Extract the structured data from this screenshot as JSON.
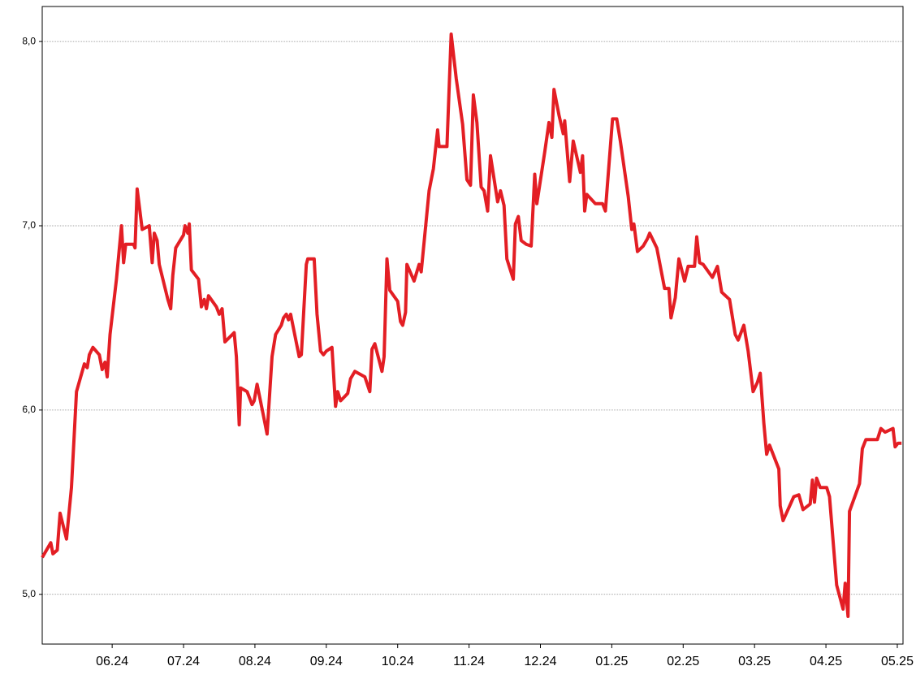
{
  "chart_data": {
    "type": "line",
    "xlim": [
      5.02,
      17.08
    ],
    "ylim": [
      4.73,
      8.19
    ],
    "xticks": [
      {
        "value": 6,
        "label": "06.24"
      },
      {
        "value": 7,
        "label": "07.24"
      },
      {
        "value": 8,
        "label": "08.24"
      },
      {
        "value": 9,
        "label": "09.24"
      },
      {
        "value": 10,
        "label": "10.24"
      },
      {
        "value": 11,
        "label": "11.24"
      },
      {
        "value": 12,
        "label": "12.24"
      },
      {
        "value": 13,
        "label": "01.25"
      },
      {
        "value": 14,
        "label": "02.25"
      },
      {
        "value": 15,
        "label": "03.25"
      },
      {
        "value": 16,
        "label": "04.25"
      },
      {
        "value": 17,
        "label": "05.25"
      }
    ],
    "yticks": [
      {
        "value": 5,
        "label": "5,0"
      },
      {
        "value": 6,
        "label": "6,0"
      },
      {
        "value": 7,
        "label": "7,0"
      },
      {
        "value": 8,
        "label": "8,0"
      }
    ],
    "grid": true,
    "series": [
      {
        "color": "#e31e24",
        "x": [
          5.02,
          5.14,
          5.17,
          5.23,
          5.27,
          5.36,
          5.43,
          5.5,
          5.61,
          5.65,
          5.68,
          5.73,
          5.82,
          5.86,
          5.9,
          5.93,
          5.97,
          6.06,
          6.13,
          6.16,
          6.19,
          6.3,
          6.32,
          6.35,
          6.42,
          6.52,
          6.56,
          6.59,
          6.63,
          6.66,
          6.78,
          6.82,
          6.85,
          6.89,
          7.0,
          7.02,
          7.06,
          7.08,
          7.11,
          7.21,
          7.25,
          7.29,
          7.32,
          7.35,
          7.46,
          7.5,
          7.54,
          7.58,
          7.71,
          7.74,
          7.78,
          7.8,
          7.89,
          7.96,
          7.99,
          8.03,
          8.13,
          8.17,
          8.24,
          8.29,
          8.37,
          8.4,
          8.44,
          8.47,
          8.5,
          8.62,
          8.65,
          8.72,
          8.74,
          8.83,
          8.87,
          8.92,
          8.96,
          9.0,
          9.08,
          9.13,
          9.16,
          9.2,
          9.3,
          9.34,
          9.4,
          9.54,
          9.61,
          9.64,
          9.68,
          9.78,
          9.81,
          9.85,
          9.89,
          10.0,
          10.04,
          10.07,
          10.11,
          10.13,
          10.23,
          10.3,
          10.33,
          10.44,
          10.5,
          10.56,
          10.58,
          10.69,
          10.75,
          10.82,
          10.91,
          10.97,
          11.02,
          11.06,
          11.11,
          11.17,
          11.21,
          11.26,
          11.3,
          11.4,
          11.44,
          11.49,
          11.53,
          11.62,
          11.65,
          11.69,
          11.73,
          11.8,
          11.87,
          11.92,
          11.95,
          12.06,
          12.12,
          12.16,
          12.19,
          12.26,
          12.32,
          12.34,
          12.41,
          12.46,
          12.56,
          12.59,
          12.62,
          12.65,
          12.77,
          12.87,
          12.91,
          13.01,
          13.07,
          13.12,
          13.23,
          13.28,
          13.31,
          13.36,
          13.44,
          13.5,
          13.53,
          13.63,
          13.74,
          13.76,
          13.8,
          13.83,
          13.89,
          13.94,
          14.02,
          14.07,
          14.16,
          14.19,
          14.23,
          14.28,
          14.41,
          14.48,
          14.54,
          14.65,
          14.73,
          14.77,
          14.85,
          14.91,
          14.98,
          15.04,
          15.08,
          15.13,
          15.17,
          15.21,
          15.34,
          15.36,
          15.4,
          15.55,
          15.62,
          15.68,
          15.78,
          15.81,
          15.84,
          15.87,
          15.92,
          16.01,
          16.05,
          16.15,
          16.24,
          16.27,
          16.31,
          16.33,
          16.47,
          16.51,
          16.56,
          16.72,
          16.77,
          16.83,
          16.94,
          16.97,
          17.01,
          17.06
        ],
        "values": [
          5.2,
          5.28,
          5.22,
          5.24,
          5.44,
          5.3,
          5.58,
          6.1,
          6.25,
          6.23,
          6.3,
          6.34,
          6.3,
          6.22,
          6.26,
          6.18,
          6.41,
          6.71,
          7.0,
          6.8,
          6.9,
          6.9,
          6.88,
          7.2,
          6.98,
          7.0,
          6.8,
          6.96,
          6.92,
          6.79,
          6.6,
          6.55,
          6.73,
          6.88,
          6.95,
          7.0,
          6.96,
          7.01,
          6.76,
          6.71,
          6.56,
          6.6,
          6.55,
          6.62,
          6.56,
          6.52,
          6.55,
          6.37,
          6.42,
          6.29,
          5.92,
          6.12,
          6.1,
          6.03,
          6.05,
          6.14,
          5.95,
          5.87,
          6.29,
          6.41,
          6.46,
          6.5,
          6.52,
          6.49,
          6.52,
          6.29,
          6.3,
          6.79,
          6.82,
          6.82,
          6.52,
          6.32,
          6.3,
          6.32,
          6.34,
          6.02,
          6.1,
          6.05,
          6.09,
          6.17,
          6.21,
          6.18,
          6.1,
          6.33,
          6.36,
          6.21,
          6.29,
          6.82,
          6.65,
          6.59,
          6.48,
          6.46,
          6.53,
          6.79,
          6.7,
          6.79,
          6.75,
          7.19,
          7.31,
          7.52,
          7.43,
          7.43,
          8.04,
          7.8,
          7.55,
          7.25,
          7.22,
          7.71,
          7.56,
          7.21,
          7.19,
          7.08,
          7.38,
          7.13,
          7.19,
          7.11,
          6.82,
          6.71,
          7.01,
          7.05,
          6.92,
          6.9,
          6.89,
          7.28,
          7.12,
          7.4,
          7.56,
          7.48,
          7.74,
          7.6,
          7.5,
          7.57,
          7.24,
          7.46,
          7.29,
          7.38,
          7.08,
          7.17,
          7.12,
          7.12,
          7.08,
          7.58,
          7.58,
          7.46,
          7.16,
          6.98,
          7.01,
          6.86,
          6.89,
          6.93,
          6.96,
          6.88,
          6.66,
          6.66,
          6.66,
          6.5,
          6.61,
          6.82,
          6.7,
          6.78,
          6.78,
          6.94,
          6.8,
          6.79,
          6.72,
          6.78,
          6.64,
          6.6,
          6.41,
          6.38,
          6.46,
          6.32,
          6.1,
          6.15,
          6.2,
          5.93,
          5.76,
          5.81,
          5.68,
          5.48,
          5.4,
          5.53,
          5.54,
          5.46,
          5.49,
          5.62,
          5.5,
          5.63,
          5.58,
          5.58,
          5.53,
          5.05,
          4.92,
          5.06,
          4.88,
          5.45,
          5.6,
          5.79,
          5.84,
          5.84,
          5.9,
          5.88,
          5.9,
          5.8,
          5.82,
          5.82
        ]
      }
    ]
  }
}
